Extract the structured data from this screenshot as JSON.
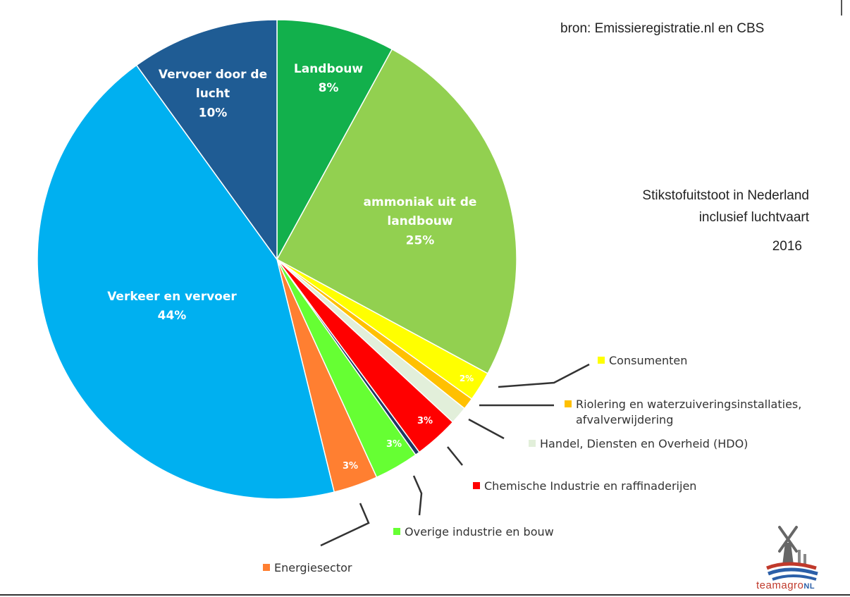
{
  "source_note": "bron: Emissieregistratie.nl en CBS",
  "title_lines": [
    "Stikstofuitstoot in Nederland",
    "inclusief luchtvaart"
  ],
  "year": "2016",
  "logo": {
    "brand": "teamagro",
    "suffix": "NL"
  },
  "chart_data": {
    "type": "pie",
    "title": "Stikstofuitstoot in Nederland inclusief luchtvaart",
    "slices": [
      {
        "key": "landbouw",
        "legend": "",
        "name_lines": [
          "Landbouw"
        ],
        "pct_label": "8%",
        "value": 8,
        "color": "#12b04c",
        "label_color": "#ffffff"
      },
      {
        "key": "ammoniak",
        "legend": "",
        "name_lines": [
          "ammoniak uit de",
          "landbouw"
        ],
        "pct_label": "25%",
        "value": 25,
        "color": "#92d050",
        "label_color": "#ffffff"
      },
      {
        "key": "consumenten",
        "legend": "Consumenten",
        "name_lines": [],
        "pct_label": "2%",
        "value": 2,
        "color": "#ffff00",
        "label_color": "#ffffff"
      },
      {
        "key": "riolering",
        "legend": "Riolering en waterzuiveringsinstallaties, afvalverwijdering",
        "name_lines": [],
        "pct_label": "",
        "value": 0.8,
        "color": "#ffc000",
        "label_color": "#ffffff"
      },
      {
        "key": "hdo",
        "legend": "Handel, Diensten en Overheid (HDO)",
        "name_lines": [],
        "pct_label": "",
        "value": 1.2,
        "color": "#e2efda",
        "label_color": "#333333"
      },
      {
        "key": "chemie",
        "legend": "Chemische Industrie en raffinaderijen",
        "name_lines": [],
        "pct_label": "3%",
        "value": 3,
        "color": "#ff0000",
        "label_color": "#ffffff"
      },
      {
        "key": "overige_dark",
        "legend": "",
        "name_lines": [],
        "pct_label": "",
        "value": 0.3,
        "color": "#1f3864",
        "label_color": "#ffffff"
      },
      {
        "key": "overige",
        "legend": "Overige industrie en bouw",
        "name_lines": [],
        "pct_label": "3%",
        "value": 3,
        "color": "#66ff33",
        "label_color": "#ffffff"
      },
      {
        "key": "energie",
        "legend": "Energiesector",
        "name_lines": [],
        "pct_label": "3%",
        "value": 3,
        "color": "#ff7f31",
        "label_color": "#ffffff"
      },
      {
        "key": "verkeer",
        "legend": "",
        "name_lines": [
          "Verkeer en vervoer"
        ],
        "pct_label": "44%",
        "value": 44,
        "color": "#00b0f0",
        "label_color": "#ffffff"
      },
      {
        "key": "lucht",
        "legend": "",
        "name_lines": [
          "Vervoer door de",
          "lucht"
        ],
        "pct_label": "10%",
        "value": 10,
        "color": "#1f5c94",
        "label_color": "#ffffff"
      }
    ],
    "legend": [
      {
        "label": "Consumenten",
        "color": "#ffff00"
      },
      {
        "label": "Riolering en waterzuiveringsinstallaties,",
        "label2": "afvalverwijdering",
        "color": "#ffc000"
      },
      {
        "label": "Handel, Diensten en Overheid (HDO)",
        "color": "#e2efda"
      },
      {
        "label": "Chemische Industrie en raffinaderijen",
        "color": "#ff0000"
      },
      {
        "label": "Overige industrie en bouw",
        "color": "#66ff33"
      },
      {
        "label": "Energiesector",
        "color": "#ff7f31"
      }
    ]
  }
}
